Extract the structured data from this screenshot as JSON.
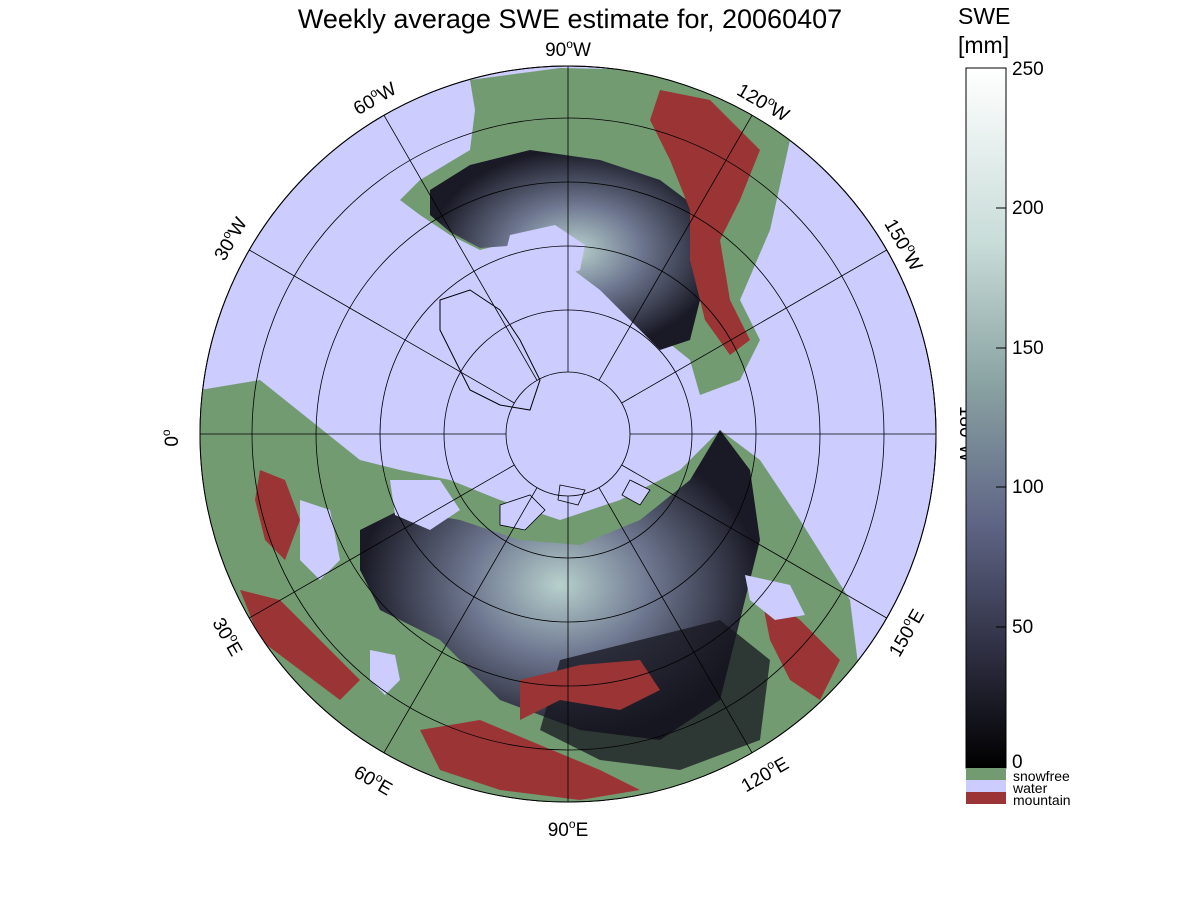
{
  "title": "Weekly average SWE estimate for, 20060407",
  "colorbar": {
    "title_line1": "SWE",
    "title_line2": "[mm]",
    "ticks": [
      "250",
      "200",
      "150",
      "100",
      "50",
      "0"
    ],
    "categories": [
      {
        "label": "snowfree",
        "color": "#739b72"
      },
      {
        "label": "water",
        "color": "#ccccff"
      },
      {
        "label": "mountain",
        "color": "#9b3535"
      }
    ],
    "range": [
      0,
      250
    ]
  },
  "longitude_labels": [
    {
      "num": "90",
      "hemi": "W"
    },
    {
      "num": "120",
      "hemi": "W"
    },
    {
      "num": "150",
      "hemi": "W"
    },
    {
      "num": "180",
      "hemi": "W"
    },
    {
      "num": "150",
      "hemi": "E"
    },
    {
      "num": "120",
      "hemi": "E"
    },
    {
      "num": "90",
      "hemi": "E"
    },
    {
      "num": "60",
      "hemi": "E"
    },
    {
      "num": "30",
      "hemi": "E"
    },
    {
      "num": "0",
      "hemi": ""
    },
    {
      "num": "30",
      "hemi": "W"
    },
    {
      "num": "60",
      "hemi": "W"
    }
  ],
  "colors": {
    "water": "#ccccff",
    "snowfree": "#739b72",
    "mountain": "#9b3535",
    "swe_low": "#000000",
    "swe_high": "#ffffff"
  }
}
